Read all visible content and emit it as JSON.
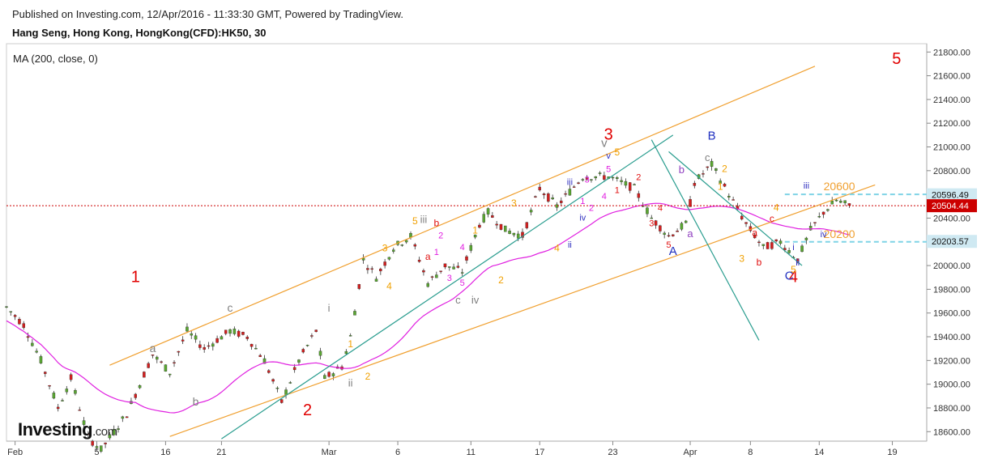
{
  "header": {
    "published": "Published on Investing.com, 12/Apr/2016 - 11:33:30 GMT, Powered by TradingView.",
    "symbol": "Hang Seng, Hong Kong, HongKong(CFD):HK50, 30"
  },
  "indicator_label": "MA (200, close, 0)",
  "logo": {
    "main": "Investing",
    "suffix": ".com"
  },
  "colors": {
    "up": "#5aa532",
    "down": "#d21f1f",
    "ma": "#e020e0",
    "channel": "#f0a030",
    "trend": "#2a9d8f",
    "level": "#7fd3e6",
    "price_line": "#cc0000"
  },
  "chart_data": {
    "type": "candlestick",
    "title": "",
    "x_ticks": [
      "Feb",
      "5",
      "16",
      "21",
      "Mar",
      "6",
      "11",
      "17",
      "23",
      "Apr",
      "8",
      "14",
      "19"
    ],
    "y_ticks": [
      "21800.00",
      "21600.00",
      "21400.00",
      "21200.00",
      "21000.00",
      "20800.00",
      "20600.00",
      "20400.00",
      "20200.00",
      "20000.00",
      "19800.00",
      "19600.00",
      "19400.00",
      "19200.00",
      "19000.00",
      "18800.00",
      "18600.00"
    ],
    "ylim": [
      18520,
      21870
    ],
    "price_labels": [
      {
        "value": 20596.49,
        "text": "20596.49",
        "bg": "#cfe9f2",
        "fg": "#111"
      },
      {
        "value": 20504.44,
        "text": "20504.44",
        "bg": "#cc0000",
        "fg": "#fff"
      },
      {
        "value": 20203.57,
        "text": "20203.57",
        "bg": "#cfe9f2",
        "fg": "#111"
      }
    ],
    "levels": [
      {
        "text": "20600",
        "value": 20600
      },
      {
        "text": "20200",
        "value": 20200
      }
    ],
    "waves": [
      {
        "t": "1",
        "x": 30,
        "y": 19860,
        "c": "#e00000",
        "s": 20
      },
      {
        "t": "2",
        "x": 70,
        "y": 18740,
        "c": "#e00000",
        "s": 20
      },
      {
        "t": "3",
        "x": 140,
        "y": 21060,
        "c": "#e00000",
        "s": 20
      },
      {
        "t": "4",
        "x": 183,
        "y": 19860,
        "c": "#e00000",
        "s": 20
      },
      {
        "t": "5",
        "x": 207,
        "y": 21700,
        "c": "#e00000",
        "s": 20
      },
      {
        "t": "a",
        "x": 34,
        "y": 19270,
        "c": "#808080",
        "s": 14
      },
      {
        "t": "b",
        "x": 44,
        "y": 18820,
        "c": "#808080",
        "s": 14
      },
      {
        "t": "c",
        "x": 52,
        "y": 19610,
        "c": "#808080",
        "s": 14
      },
      {
        "t": "i",
        "x": 75,
        "y": 19610,
        "c": "#808080",
        "s": 13
      },
      {
        "t": "ii",
        "x": 80,
        "y": 18980,
        "c": "#808080",
        "s": 13
      },
      {
        "t": "iii",
        "x": 97,
        "y": 20360,
        "c": "#808080",
        "s": 13
      },
      {
        "t": "iv",
        "x": 109,
        "y": 19680,
        "c": "#808080",
        "s": 13
      },
      {
        "t": "v",
        "x": 139,
        "y": 21000,
        "c": "#808080",
        "s": 15
      },
      {
        "t": "c",
        "x": 105,
        "y": 19680,
        "c": "#808080",
        "s": 13
      },
      {
        "t": "1",
        "x": 80,
        "y": 19310,
        "c": "#f0a000",
        "s": 12
      },
      {
        "t": "2",
        "x": 84,
        "y": 19040,
        "c": "#f0a000",
        "s": 12
      },
      {
        "t": "3",
        "x": 88,
        "y": 20120,
        "c": "#f0a000",
        "s": 12
      },
      {
        "t": "4",
        "x": 89,
        "y": 19800,
        "c": "#f0a000",
        "s": 12
      },
      {
        "t": "5",
        "x": 95,
        "y": 20350,
        "c": "#f0a000",
        "s": 12
      },
      {
        "t": "1",
        "x": 109,
        "y": 20270,
        "c": "#f0a000",
        "s": 12
      },
      {
        "t": "2",
        "x": 115,
        "y": 19850,
        "c": "#f0a000",
        "s": 12
      },
      {
        "t": "3",
        "x": 118,
        "y": 20500,
        "c": "#f0a000",
        "s": 12
      },
      {
        "t": "4",
        "x": 128,
        "y": 20120,
        "c": "#f0a000",
        "s": 12
      },
      {
        "t": "5",
        "x": 142,
        "y": 20930,
        "c": "#f0a000",
        "s": 12
      },
      {
        "t": "a",
        "x": 98,
        "y": 20050,
        "c": "#e01010",
        "s": 12
      },
      {
        "t": "b",
        "x": 100,
        "y": 20330,
        "c": "#e01010",
        "s": 12
      },
      {
        "t": "1",
        "x": 100,
        "y": 20090,
        "c": "#e020e0",
        "s": 11
      },
      {
        "t": "2",
        "x": 101,
        "y": 20230,
        "c": "#e020e0",
        "s": 11
      },
      {
        "t": "3",
        "x": 103,
        "y": 19870,
        "c": "#e020e0",
        "s": 11
      },
      {
        "t": "4",
        "x": 106,
        "y": 20130,
        "c": "#e020e0",
        "s": 11
      },
      {
        "t": "5",
        "x": 106,
        "y": 19830,
        "c": "#e020e0",
        "s": 11
      },
      {
        "t": "iii",
        "x": 131,
        "y": 20680,
        "c": "#3030c0",
        "s": 11
      },
      {
        "t": "iv",
        "x": 134,
        "y": 20380,
        "c": "#3030c0",
        "s": 11
      },
      {
        "t": "ii",
        "x": 131,
        "y": 20150,
        "c": "#3030c0",
        "s": 11
      },
      {
        "t": "v",
        "x": 140,
        "y": 20900,
        "c": "#3030c0",
        "s": 11
      },
      {
        "t": "1",
        "x": 134,
        "y": 20520,
        "c": "#e020e0",
        "s": 11
      },
      {
        "t": "2",
        "x": 136,
        "y": 20460,
        "c": "#e020e0",
        "s": 11
      },
      {
        "t": "3",
        "x": 135,
        "y": 20700,
        "c": "#e020e0",
        "s": 11
      },
      {
        "t": "4",
        "x": 139,
        "y": 20560,
        "c": "#e020e0",
        "s": 11
      },
      {
        "t": "5",
        "x": 140,
        "y": 20790,
        "c": "#e020e0",
        "s": 11
      },
      {
        "t": "1",
        "x": 142,
        "y": 20610,
        "c": "#e01010",
        "s": 11
      },
      {
        "t": "2",
        "x": 147,
        "y": 20720,
        "c": "#e01010",
        "s": 11
      },
      {
        "t": "3",
        "x": 150,
        "y": 20330,
        "c": "#e01010",
        "s": 11
      },
      {
        "t": "4",
        "x": 152,
        "y": 20460,
        "c": "#e01010",
        "s": 11
      },
      {
        "t": "5",
        "x": 154,
        "y": 20150,
        "c": "#e01010",
        "s": 11
      },
      {
        "t": "a",
        "x": 159,
        "y": 20240,
        "c": "#9040c0",
        "s": 13
      },
      {
        "t": "b",
        "x": 157,
        "y": 20780,
        "c": "#9040c0",
        "s": 13
      },
      {
        "t": "c",
        "x": 163,
        "y": 20880,
        "c": "#808080",
        "s": 13
      },
      {
        "t": "A",
        "x": 155,
        "y": 20090,
        "c": "#2030c0",
        "s": 15
      },
      {
        "t": "B",
        "x": 164,
        "y": 21060,
        "c": "#2030c0",
        "s": 15
      },
      {
        "t": "C",
        "x": 182,
        "y": 19880,
        "c": "#2030c0",
        "s": 15
      },
      {
        "t": "1",
        "x": 166,
        "y": 20640,
        "c": "#f0a000",
        "s": 12
      },
      {
        "t": "2",
        "x": 167,
        "y": 20790,
        "c": "#f0a000",
        "s": 12
      },
      {
        "t": "3",
        "x": 171,
        "y": 20030,
        "c": "#f0a000",
        "s": 12
      },
      {
        "t": "4",
        "x": 179,
        "y": 20460,
        "c": "#f0a000",
        "s": 12
      },
      {
        "t": "5",
        "x": 183,
        "y": 19940,
        "c": "#f0a000",
        "s": 12
      },
      {
        "t": "a",
        "x": 174,
        "y": 20250,
        "c": "#e01010",
        "s": 12
      },
      {
        "t": "b",
        "x": 175,
        "y": 20000,
        "c": "#e01010",
        "s": 12
      },
      {
        "t": "c",
        "x": 178,
        "y": 20370,
        "c": "#e01010",
        "s": 12
      },
      {
        "t": "i",
        "x": 183,
        "y": 20130,
        "c": "#3030c0",
        "s": 11
      },
      {
        "t": "ii",
        "x": 184,
        "y": 20000,
        "c": "#3030c0",
        "s": 11
      },
      {
        "t": "iii",
        "x": 186,
        "y": 20650,
        "c": "#3030c0",
        "s": 11
      },
      {
        "t": "iv",
        "x": 190,
        "y": 20240,
        "c": "#3030c0",
        "s": 11
      }
    ]
  }
}
